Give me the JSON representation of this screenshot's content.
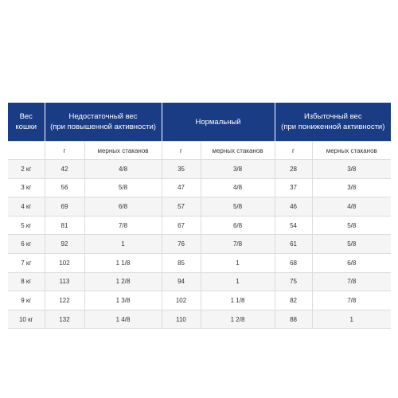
{
  "table": {
    "headers": [
      "Вес кошки",
      "Недостаточный вес\n(при повышенной активности)",
      "Нормальный",
      "Избыточный вес\n(при пониженной активности)"
    ],
    "units": [
      "",
      "г",
      "мерных стаканов",
      "г",
      "мерных стаканов",
      "г",
      "мерных стаканов"
    ],
    "rows": [
      [
        "2 кг",
        "42",
        "4/8",
        "35",
        "3/8",
        "28",
        "3/8"
      ],
      [
        "3 кг",
        "56",
        "5/8",
        "47",
        "4/8",
        "37",
        "3/8"
      ],
      [
        "4 кг",
        "69",
        "6/8",
        "57",
        "5/8",
        "46",
        "4/8"
      ],
      [
        "5 кг",
        "81",
        "7/8",
        "67",
        "6/8",
        "54",
        "5/8"
      ],
      [
        "6 кг",
        "92",
        "1",
        "76",
        "7/8",
        "61",
        "5/8"
      ],
      [
        "7 кг",
        "102",
        "1 1/8",
        "85",
        "1",
        "68",
        "6/8"
      ],
      [
        "8 кг",
        "113",
        "1 2/8",
        "94",
        "1",
        "75",
        "7/8"
      ],
      [
        "9 кг",
        "122",
        "1 3/8",
        "102",
        "1 1/8",
        "82",
        "7/8"
      ],
      [
        "10 кг",
        "132",
        "1 4/8",
        "110",
        "1 2/8",
        "88",
        "1"
      ]
    ]
  },
  "colors": {
    "header_bg": "#1a3c85",
    "header_text": "#ffffff",
    "row_alt": "#f5f5f5",
    "border": "#dcdcdc"
  }
}
